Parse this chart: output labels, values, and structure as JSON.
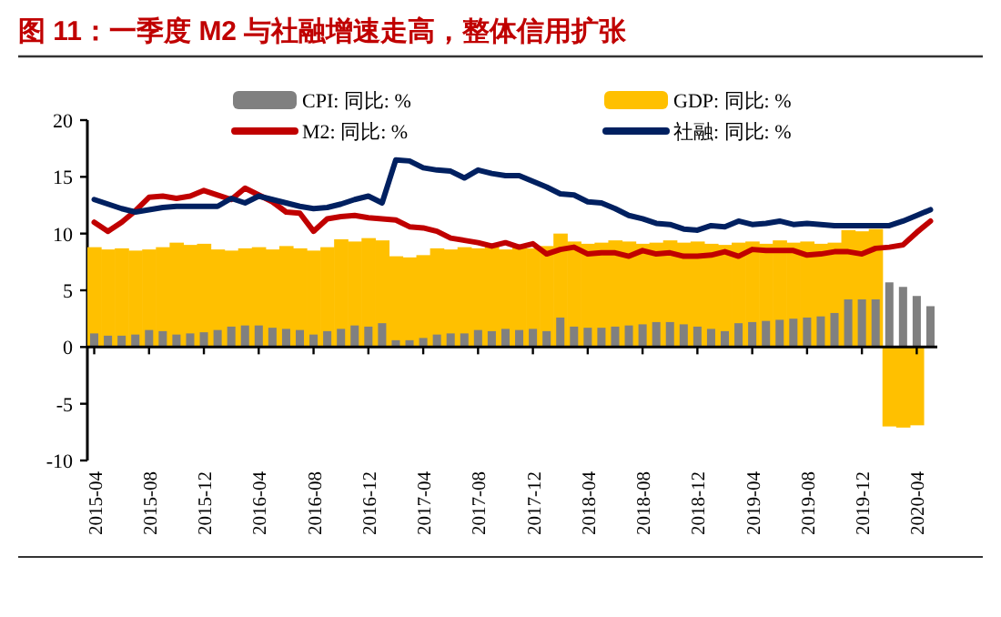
{
  "chart_data": {
    "type": "bar",
    "title": "图 11：一季度 M2 与社融增速走高，整体信用扩张",
    "categories": [
      "2015-04",
      null,
      null,
      null,
      "2015-08",
      null,
      null,
      null,
      "2015-12",
      null,
      null,
      null,
      "2016-04",
      null,
      null,
      null,
      "2016-08",
      null,
      null,
      null,
      "2016-12",
      null,
      null,
      null,
      "2017-04",
      null,
      null,
      null,
      "2017-08",
      null,
      null,
      null,
      "2017-12",
      null,
      null,
      null,
      "2018-04",
      null,
      null,
      null,
      "2018-08",
      null,
      null,
      null,
      "2018-12",
      null,
      null,
      null,
      "2019-04",
      null,
      null,
      null,
      "2019-08",
      null,
      null,
      null,
      "2019-12",
      null,
      null,
      null,
      "2020-04",
      null
    ],
    "series": [
      {
        "name": "GDP: 同比: %",
        "color": "#ffc000",
        "values": [
          8.8,
          8.6,
          8.7,
          8.5,
          8.6,
          8.8,
          9.2,
          9.0,
          9.1,
          8.6,
          8.5,
          8.7,
          8.8,
          8.6,
          8.9,
          8.7,
          8.5,
          8.8,
          9.5,
          9.3,
          9.6,
          9.4,
          8.0,
          7.9,
          8.1,
          8.7,
          8.6,
          8.8,
          8.7,
          8.9,
          8.6,
          8.8,
          8.7,
          8.9,
          10.0,
          9.3,
          9.1,
          9.2,
          9.4,
          9.3,
          9.1,
          9.2,
          9.4,
          9.2,
          9.3,
          9.1,
          9.0,
          9.2,
          9.3,
          9.1,
          9.4,
          9.2,
          9.3,
          9.1,
          9.2,
          10.3,
          10.2,
          10.4,
          -7.0,
          -7.1,
          -6.9,
          null
        ]
      },
      {
        "name": "CPI: 同比: %",
        "color": "#808080",
        "values": [
          1.2,
          1.0,
          1.0,
          1.1,
          1.5,
          1.4,
          1.1,
          1.2,
          1.3,
          1.5,
          1.8,
          1.9,
          1.9,
          1.7,
          1.6,
          1.5,
          1.1,
          1.4,
          1.6,
          1.9,
          1.8,
          2.1,
          0.6,
          0.6,
          0.8,
          1.1,
          1.2,
          1.2,
          1.5,
          1.4,
          1.6,
          1.5,
          1.6,
          1.4,
          2.6,
          1.8,
          1.7,
          1.7,
          1.8,
          1.9,
          2.0,
          2.2,
          2.2,
          2.0,
          1.8,
          1.6,
          1.4,
          2.1,
          2.2,
          2.3,
          2.4,
          2.5,
          2.6,
          2.7,
          3.0,
          4.2,
          4.2,
          4.2,
          5.7,
          5.3,
          4.5,
          3.6
        ]
      },
      {
        "name": "M2: 同比: %",
        "type": "line",
        "color": "#c00000",
        "values": [
          11.0,
          10.2,
          11.0,
          12.0,
          13.2,
          13.3,
          13.1,
          13.3,
          13.8,
          13.4,
          13.0,
          14.0,
          13.4,
          12.8,
          11.9,
          11.8,
          10.2,
          11.3,
          11.5,
          11.6,
          11.4,
          11.3,
          11.2,
          10.6,
          10.5,
          10.2,
          9.6,
          9.4,
          9.2,
          8.9,
          9.2,
          8.8,
          9.1,
          8.2,
          8.6,
          8.8,
          8.2,
          8.3,
          8.3,
          8.0,
          8.5,
          8.2,
          8.3,
          8.0,
          8.0,
          8.1,
          8.4,
          8.0,
          8.6,
          8.5,
          8.5,
          8.5,
          8.1,
          8.2,
          8.4,
          8.4,
          8.2,
          8.7,
          8.8,
          9.0,
          10.1,
          11.1
        ]
      },
      {
        "name": "社融: 同比: %",
        "type": "line",
        "color": "#002060",
        "values": [
          13.0,
          12.6,
          12.2,
          11.9,
          12.1,
          12.3,
          12.4,
          12.4,
          12.4,
          12.4,
          13.1,
          12.7,
          13.3,
          13.0,
          12.7,
          12.4,
          12.2,
          12.3,
          12.6,
          13.0,
          13.3,
          12.7,
          16.5,
          16.4,
          15.8,
          15.6,
          15.5,
          14.9,
          15.6,
          15.3,
          15.1,
          15.1,
          14.6,
          14.1,
          13.5,
          13.4,
          12.8,
          12.7,
          12.2,
          11.6,
          11.3,
          10.9,
          10.8,
          10.4,
          10.3,
          10.7,
          10.6,
          11.1,
          10.8,
          10.9,
          11.1,
          10.8,
          10.9,
          10.8,
          10.7,
          10.7,
          10.7,
          10.7,
          10.7,
          11.1,
          11.6,
          12.1
        ]
      }
    ],
    "ylim": [
      -10,
      20
    ],
    "yticks": [
      -10,
      -5,
      0,
      5,
      10,
      15,
      20
    ],
    "legend": "top"
  }
}
